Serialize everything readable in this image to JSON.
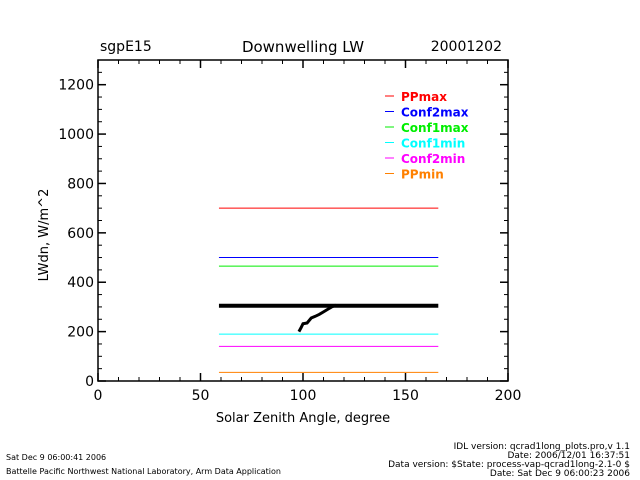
{
  "header": {
    "site": "sgpE15",
    "title": "Downwelling LW",
    "date": "20001202"
  },
  "footer": {
    "left1": "Sat Dec  9 06:00:41 2006",
    "left2": "Battelle Pacific Northwest National Laboratory, Arm Data Application",
    "right1": "IDL version: qcrad1long_plots.pro,v 1.1",
    "right2": "Date: 2006/12/01 16:37:51",
    "right3": "Data version: $State: process-vap-qcrad1long-2.1-0 $",
    "right4": "Date: Sat Dec  9 06:00:23 2006"
  },
  "chart_data": {
    "type": "line",
    "title": "Downwelling LW",
    "xlabel": "Solar Zenith Angle, degree",
    "ylabel": "LWdn, W/m^2",
    "xlim": [
      0,
      200
    ],
    "ylim": [
      0,
      1300
    ],
    "xticks": [
      "0",
      "50",
      "100",
      "150",
      "200"
    ],
    "yticks": [
      "0",
      "200",
      "400",
      "600",
      "800",
      "1000",
      "1200"
    ],
    "legend_position": "top-right",
    "limits": [
      {
        "name": "PPmax",
        "value": 700,
        "color": "#ff0000"
      },
      {
        "name": "Conf2max",
        "value": 500,
        "color": "#0000ff"
      },
      {
        "name": "Conf1max",
        "value": 465,
        "color": "#00ee00"
      },
      {
        "name": "Conf1min",
        "value": 190,
        "color": "#00ffff"
      },
      {
        "name": "Conf2min",
        "value": 140,
        "color": "#ff00ff"
      },
      {
        "name": "PPmin",
        "value": 35,
        "color": "#ff8000"
      }
    ],
    "limit_x_range": [
      59,
      166
    ],
    "data": {
      "x": [
        59,
        80,
        98,
        99,
        100,
        102,
        104,
        106,
        108,
        110,
        112,
        114,
        116,
        120,
        140,
        166
      ],
      "y": [
        305,
        302,
        200,
        215,
        232,
        235,
        255,
        262,
        270,
        280,
        290,
        300,
        307,
        308,
        308,
        305
      ],
      "baseline": {
        "x": [
          59,
          166
        ],
        "y": [
          305,
          305
        ]
      }
    }
  }
}
